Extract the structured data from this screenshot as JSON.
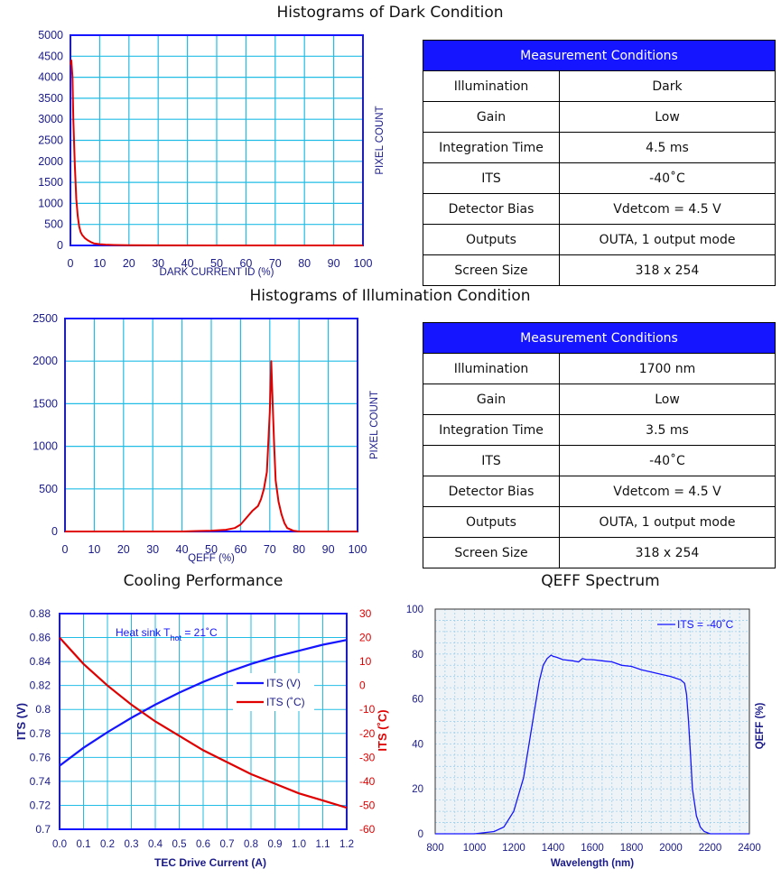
{
  "titles": {
    "dark": "Histograms of Dark Condition",
    "illum": "Histograms of Illumination Condition",
    "cooling": "Cooling Performance",
    "qeff": "QEFF Spectrum"
  },
  "tables": [
    {
      "header": "Measurement Conditions",
      "rows": [
        {
          "k": "Illumination",
          "v": "Dark"
        },
        {
          "k": "Gain",
          "v": "Low"
        },
        {
          "k": "Integration Time",
          "v": "4.5 ms"
        },
        {
          "k": "ITS",
          "v": "-40˚C"
        },
        {
          "k": "Detector Bias",
          "v": "Vdetcom = 4.5 V"
        },
        {
          "k": "Outputs",
          "v": "OUTA, 1 output mode"
        },
        {
          "k": "Screen Size",
          "v": "318 x 254"
        }
      ]
    },
    {
      "header": "Measurement Conditions",
      "rows": [
        {
          "k": "Illumination",
          "v": "1700 nm"
        },
        {
          "k": "Gain",
          "v": "Low"
        },
        {
          "k": "Integration Time",
          "v": "3.5 ms"
        },
        {
          "k": "ITS",
          "v": "-40˚C"
        },
        {
          "k": "Detector Bias",
          "v": "Vdetcom = 4.5 V"
        },
        {
          "k": "Outputs",
          "v": "OUTA, 1 output mode"
        },
        {
          "k": "Screen Size",
          "v": "318 x 254"
        }
      ]
    }
  ],
  "colors": {
    "blue": "#1515ff",
    "red": "#e00000",
    "grid": "#22bde6",
    "qgrid": "#9fd0ea"
  },
  "chart_data": [
    {
      "type": "line",
      "title": "Histograms of Dark Condition",
      "xlabel": "DARK CURRENT ID (%)",
      "ylabel": "PIXEL COUNT",
      "xlim": [
        0,
        100
      ],
      "ylim": [
        0,
        5000
      ],
      "xticks": [
        "0",
        "10",
        "20",
        "30",
        "40",
        "50",
        "60",
        "70",
        "80",
        "90",
        "100"
      ],
      "yticks": [
        "0",
        "500",
        "1000",
        "1500",
        "2000",
        "2500",
        "3000",
        "3500",
        "4000",
        "4500",
        "5000"
      ],
      "series": [
        {
          "x": [
            0,
            0.3,
            0.7,
            1,
            1.5,
            2,
            2.5,
            3,
            3.5,
            4,
            5,
            6,
            7,
            8,
            10,
            12,
            15,
            20,
            30,
            50,
            100
          ],
          "y": [
            4300,
            4400,
            4000,
            3000,
            1900,
            1100,
            700,
            450,
            320,
            250,
            170,
            120,
            80,
            50,
            30,
            20,
            10,
            5,
            2,
            0,
            0
          ]
        }
      ]
    },
    {
      "type": "line",
      "title": "Histograms of Illumination Condition",
      "xlabel": "QEFF (%)",
      "ylabel": "PIXEL COUNT",
      "xlim": [
        0,
        100
      ],
      "ylim": [
        0,
        2500
      ],
      "xticks": [
        "0",
        "10",
        "20",
        "30",
        "40",
        "50",
        "60",
        "70",
        "80",
        "90",
        "100"
      ],
      "yticks": [
        "0",
        "500",
        "1000",
        "1500",
        "2000",
        "2500"
      ],
      "series": [
        {
          "x": [
            0,
            40,
            45,
            50,
            55,
            58,
            60,
            62,
            64,
            66,
            67,
            68,
            69,
            70,
            70.5,
            71,
            71.5,
            72,
            73,
            74,
            75,
            76,
            78,
            80,
            100
          ],
          "y": [
            0,
            0,
            5,
            10,
            20,
            40,
            80,
            160,
            240,
            300,
            380,
            500,
            700,
            1400,
            2000,
            1500,
            1000,
            600,
            350,
            200,
            100,
            40,
            10,
            0,
            0
          ]
        }
      ]
    },
    {
      "type": "line",
      "title": "Cooling Performance",
      "xlabel": "TEC Drive Current (A)",
      "ylabel": "ITS (V)",
      "y2label": "ITS (˚C)",
      "annotation": "Heat sink T",
      "annotation_sub": "hot",
      "annotation_tail": " = 21˚C",
      "xlim": [
        0,
        1.2
      ],
      "ylim": [
        0.7,
        0.88
      ],
      "y2lim": [
        -60,
        30
      ],
      "xticks": [
        "0.0",
        "0.1",
        "0.2",
        "0.3",
        "0.4",
        "0.5",
        "0.6",
        "0.7",
        "0.8",
        "0.9",
        "1.0",
        "1.1",
        "1.2"
      ],
      "yticks": [
        "0.7",
        "0.72",
        "0.74",
        "0.76",
        "0.78",
        "0.8",
        "0.82",
        "0.84",
        "0.86",
        "0.88"
      ],
      "y2ticks": [
        "-60",
        "-50",
        "-40",
        "-30",
        "-20",
        "-10",
        "0",
        "10",
        "20",
        "30"
      ],
      "legend": [
        "ITS (V)",
        "ITS (˚C)"
      ],
      "series": [
        {
          "name": "ITS (V)",
          "axis": "left",
          "x": [
            0,
            0.1,
            0.2,
            0.3,
            0.4,
            0.5,
            0.6,
            0.7,
            0.8,
            0.9,
            1.0,
            1.1,
            1.2
          ],
          "y": [
            0.753,
            0.768,
            0.781,
            0.793,
            0.804,
            0.814,
            0.823,
            0.831,
            0.838,
            0.844,
            0.849,
            0.854,
            0.858
          ]
        },
        {
          "name": "ITS (˚C)",
          "axis": "right",
          "x": [
            0,
            0.1,
            0.2,
            0.3,
            0.4,
            0.5,
            0.6,
            0.7,
            0.8,
            0.9,
            1.0,
            1.1,
            1.2
          ],
          "y": [
            20,
            9,
            0,
            -8,
            -15,
            -21,
            -27,
            -32,
            -37,
            -41,
            -45,
            -48,
            -51
          ]
        }
      ]
    },
    {
      "type": "line",
      "title": "QEFF Spectrum",
      "xlabel": "Wavelength (nm)",
      "ylabel": "QEFF (%)",
      "legend": [
        "ITS = -40˚C"
      ],
      "xlim": [
        800,
        2400
      ],
      "ylim": [
        0,
        100
      ],
      "xticks": [
        "800",
        "1000",
        "1200",
        "1400",
        "1600",
        "1800",
        "2000",
        "2200",
        "2400"
      ],
      "yticks": [
        "0",
        "20",
        "40",
        "60",
        "80",
        "100"
      ],
      "series": [
        {
          "name": "ITS = -40˚C",
          "x": [
            800,
            1000,
            1100,
            1150,
            1200,
            1250,
            1300,
            1330,
            1350,
            1370,
            1390,
            1400,
            1420,
            1450,
            1500,
            1530,
            1550,
            1570,
            1600,
            1650,
            1700,
            1750,
            1800,
            1850,
            1900,
            1950,
            2000,
            2050,
            2070,
            2080,
            2090,
            2100,
            2110,
            2130,
            2150,
            2170,
            2200,
            2400
          ],
          "y": [
            0,
            0,
            1,
            3,
            10,
            25,
            52,
            68,
            75,
            78,
            79.5,
            79,
            78.5,
            77.5,
            77,
            76.5,
            78,
            77.5,
            77.5,
            77,
            76.5,
            75,
            74.5,
            73,
            72,
            71,
            70,
            68.5,
            67,
            62,
            50,
            35,
            20,
            8,
            3,
            1,
            0,
            0
          ]
        }
      ]
    }
  ]
}
